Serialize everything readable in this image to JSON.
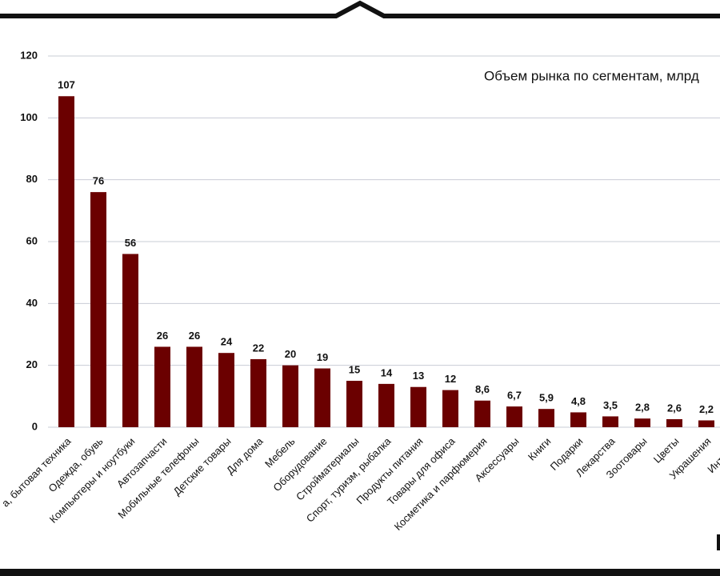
{
  "chart_data": {
    "type": "bar",
    "title": "Объем рынка по сегментам, млрд",
    "categories": [
      "а, бытовая техника",
      "Одежда, обувь",
      "Компьютеры и ноутбуки",
      "Автозапчасти",
      "Мобильные телефоны",
      "Детские товары",
      "Для дома",
      "Мебель",
      "Оборудование",
      "Стройматериалы",
      "Спорт, туризм, рыбалка",
      "Продукты питания",
      "Товары для офиса",
      "Косметика и парфюмерия",
      "Аксессуары",
      "Книги",
      "Подарки",
      "Лекарства",
      "Зоотовары",
      "Цветы",
      "Украшения",
      "Интим-то"
    ],
    "values": [
      107,
      76,
      56,
      26,
      26,
      24,
      22,
      20,
      19,
      15,
      14,
      13,
      12,
      8.6,
      6.7,
      5.9,
      4.8,
      3.5,
      2.8,
      2.6,
      2.2,
      null
    ],
    "value_labels": [
      "107",
      "76",
      "56",
      "26",
      "26",
      "24",
      "22",
      "20",
      "19",
      "15",
      "14",
      "13",
      "12",
      "8,6",
      "6,7",
      "5,9",
      "4,8",
      "3,5",
      "2,8",
      "2,6",
      "2,2",
      null
    ],
    "color": "#6b0000",
    "ylim": [
      0,
      120
    ],
    "yticks": [
      0,
      20,
      40,
      60,
      80,
      100,
      120
    ],
    "grid": true
  }
}
